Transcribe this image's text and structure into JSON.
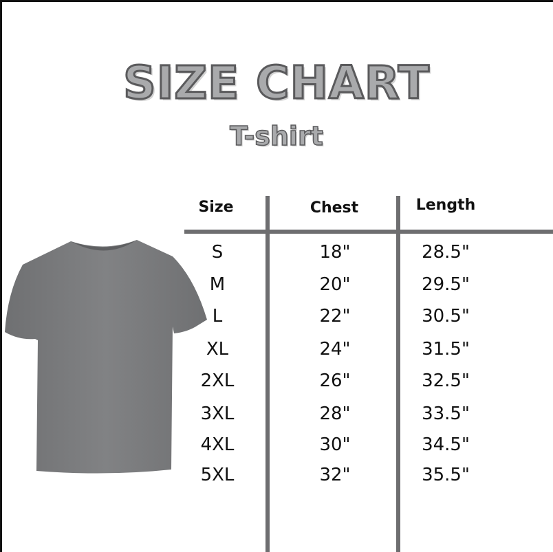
{
  "title": "SIZE CHART",
  "subtitle": "T-shirt",
  "colors": {
    "shirt": "#7b7c7e",
    "grid_lines": "#6e6e70",
    "title_fill": "#a9aaac"
  },
  "table": {
    "headers": [
      "Size",
      "Chest",
      "Length"
    ],
    "rows": [
      [
        "S",
        "18\"",
        "28.5\""
      ],
      [
        "M",
        "20\"",
        "29.5\""
      ],
      [
        "L",
        "22\"",
        "30.5\""
      ],
      [
        "XL",
        "24\"",
        "31.5\""
      ],
      [
        "2XL",
        "26\"",
        "32.5\""
      ],
      [
        "3XL",
        "28\"",
        "33.5\""
      ],
      [
        "4XL",
        "30\"",
        "34.5\""
      ],
      [
        "5XL",
        "32\"",
        "35.5\""
      ]
    ]
  }
}
